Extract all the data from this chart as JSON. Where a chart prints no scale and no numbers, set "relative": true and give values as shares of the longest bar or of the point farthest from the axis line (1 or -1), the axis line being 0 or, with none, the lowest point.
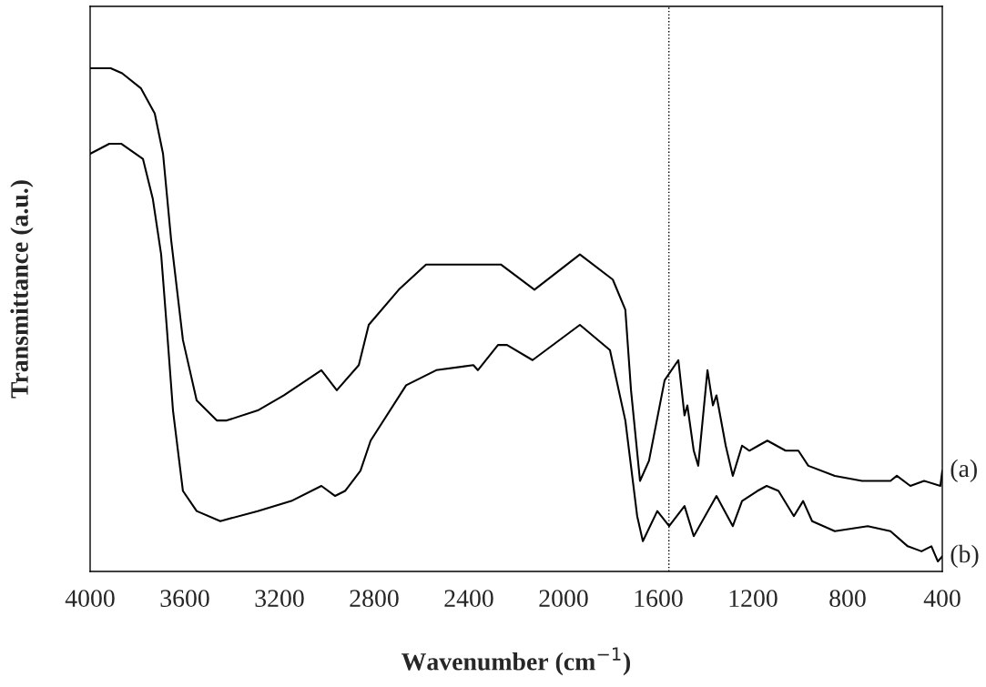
{
  "chart_data": {
    "type": "line",
    "relative": true,
    "xlabel": "Wavenumber (cm$^{−1}$)",
    "ylabel": "Transmittance (a.u.)",
    "xlim": [
      4000,
      400
    ],
    "xticks": [
      4000,
      3600,
      3200,
      2800,
      2400,
      2000,
      1600,
      1200,
      800,
      400
    ],
    "ref_lines": [
      {
        "axis": "x",
        "value": 1555,
        "color": "#000000",
        "line_style": "dotted"
      }
    ],
    "series": [
      {
        "name": "(a)",
        "color": "#000000",
        "x": [
          4000,
          3913,
          3865,
          3785,
          3727,
          3692,
          3658,
          3608,
          3550,
          3465,
          3423,
          3292,
          3181,
          3023,
          2958,
          2865,
          2823,
          2696,
          2581,
          2523,
          2458,
          2265,
          2123,
          1931,
          1792,
          1739,
          1715,
          1677,
          1639,
          1573,
          1515,
          1489,
          1477,
          1450,
          1431,
          1392,
          1369,
          1354,
          1315,
          1285,
          1246,
          1215,
          1177,
          1139,
          1062,
          1008,
          966,
          854,
          739,
          619,
          592,
          535,
          477,
          408,
          400
        ],
        "values": [
          1.0,
          1.0,
          0.99,
          0.96,
          0.91,
          0.83,
          0.66,
          0.46,
          0.34,
          0.3,
          0.3,
          0.32,
          0.35,
          0.4,
          0.36,
          0.41,
          0.49,
          0.56,
          0.61,
          0.61,
          0.61,
          0.61,
          0.56,
          0.63,
          0.58,
          0.52,
          0.36,
          0.18,
          0.22,
          0.38,
          0.42,
          0.31,
          0.33,
          0.24,
          0.21,
          0.4,
          0.33,
          0.35,
          0.25,
          0.19,
          0.25,
          0.24,
          0.25,
          0.26,
          0.24,
          0.24,
          0.21,
          0.19,
          0.18,
          0.18,
          0.19,
          0.17,
          0.18,
          0.17,
          0.2
        ]
      },
      {
        "name": "(b)",
        "color": "#000000",
        "x": [
          4000,
          3919,
          3869,
          3777,
          3735,
          3700,
          3677,
          3650,
          3608,
          3550,
          3450,
          3292,
          3150,
          3023,
          2965,
          2923,
          2858,
          2815,
          2665,
          2538,
          2381,
          2362,
          2277,
          2239,
          2131,
          1931,
          1804,
          1739,
          1689,
          1665,
          1604,
          1554,
          1489,
          1450,
          1354,
          1285,
          1246,
          1181,
          1142,
          1092,
          1027,
          988,
          950,
          854,
          715,
          619,
          546,
          488,
          446,
          419,
          400
        ],
        "values": [
          0.83,
          0.85,
          0.85,
          0.82,
          0.74,
          0.63,
          0.49,
          0.32,
          0.16,
          0.12,
          0.1,
          0.12,
          0.14,
          0.17,
          0.15,
          0.16,
          0.2,
          0.26,
          0.37,
          0.4,
          0.41,
          0.4,
          0.45,
          0.45,
          0.42,
          0.49,
          0.44,
          0.3,
          0.11,
          0.06,
          0.12,
          0.09,
          0.13,
          0.07,
          0.15,
          0.09,
          0.14,
          0.16,
          0.17,
          0.16,
          0.11,
          0.14,
          0.1,
          0.08,
          0.09,
          0.08,
          0.05,
          0.04,
          0.05,
          0.02,
          0.03
        ]
      }
    ]
  }
}
